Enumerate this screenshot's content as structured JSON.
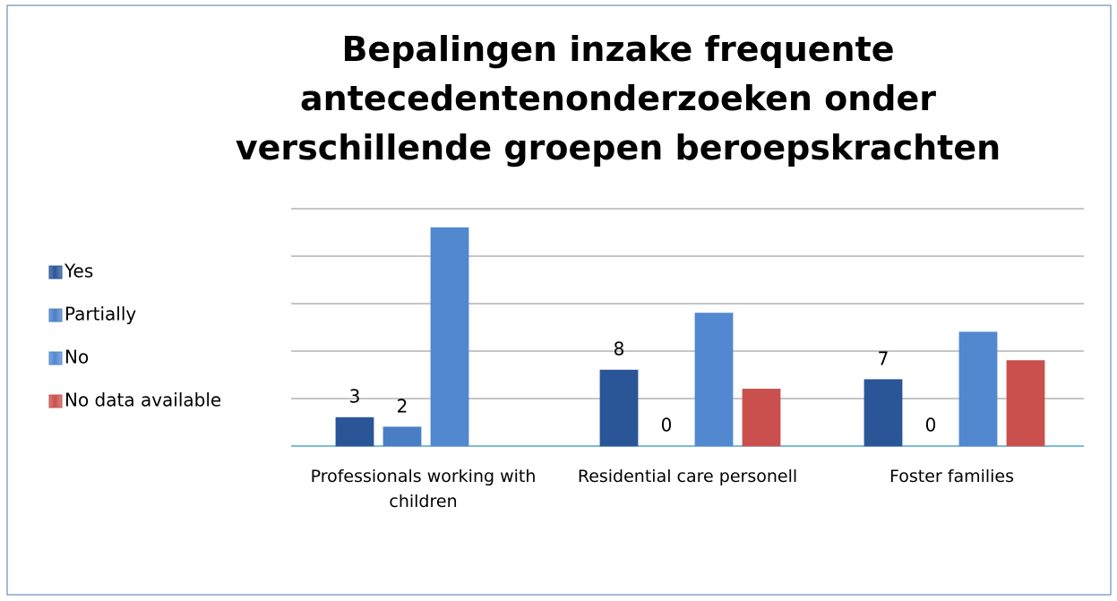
{
  "chart_data": {
    "type": "bar",
    "title": "Bepalingen inzake frequente antecedentenonderzoeken onder verschillende groepen beroepskrachten",
    "categories": [
      "Professionals working with children",
      "Residential care personell",
      "Foster families"
    ],
    "series": [
      {
        "name": "Yes",
        "color": "#2a5597",
        "values": [
          3,
          8,
          7
        ],
        "show_labels": true
      },
      {
        "name": "Partially",
        "color": "#4a7ec4",
        "values": [
          2,
          0,
          0
        ],
        "show_labels": true
      },
      {
        "name": "No",
        "color": "#5288cf",
        "values": [
          23,
          14,
          12
        ],
        "show_labels": false
      },
      {
        "name": "No data available",
        "color": "#c9504d",
        "values": [
          null,
          6,
          9
        ],
        "show_labels": false
      }
    ],
    "ylim": [
      0,
      25
    ],
    "yticks": [
      0,
      5,
      10,
      15,
      20,
      25
    ],
    "grid": true,
    "legend": "left"
  }
}
